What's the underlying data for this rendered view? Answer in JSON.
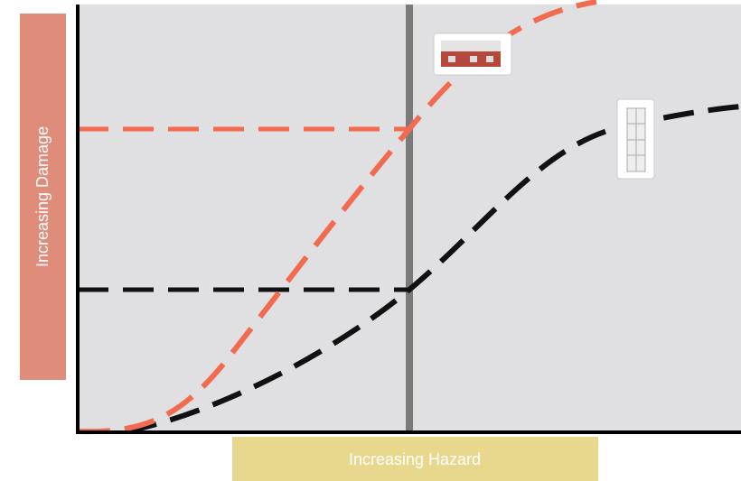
{
  "y_axis_label": "Increasing Damage",
  "x_axis_label": "Increasing Hazard"
}
